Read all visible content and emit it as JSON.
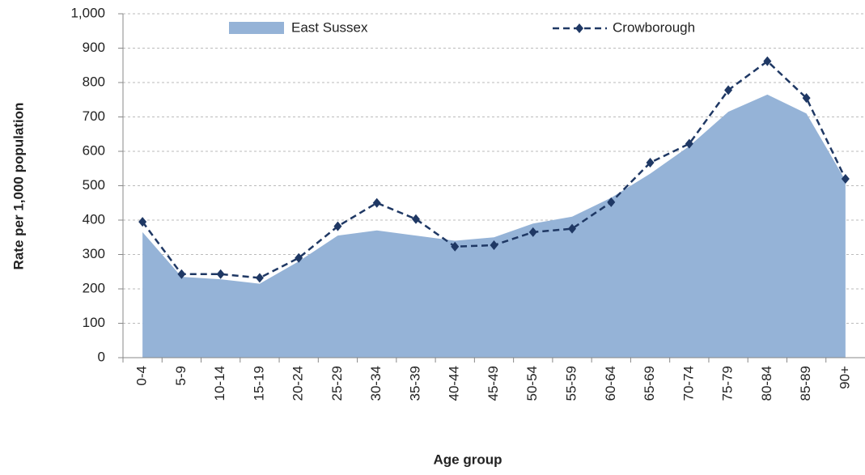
{
  "chart_data": {
    "type": "area",
    "y_label": "Rate per 1,000 population",
    "x_label": "Age group",
    "categories": [
      "0-4",
      "5-9",
      "10-14",
      "15-19",
      "20-24",
      "25-29",
      "30-34",
      "35-39",
      "40-44",
      "45-49",
      "50-54",
      "55-59",
      "60-64",
      "65-69",
      "70-74",
      "75-79",
      "80-84",
      "85-89",
      "90+"
    ],
    "series": [
      {
        "name": "East Sussex",
        "type": "area",
        "color": "#95b3d7",
        "values": [
          365,
          235,
          228,
          215,
          280,
          355,
          370,
          355,
          340,
          350,
          390,
          410,
          465,
          535,
          615,
          715,
          765,
          710,
          515
        ]
      },
      {
        "name": "Crowborough",
        "type": "line",
        "color": "#1f3864",
        "values": [
          395,
          243,
          243,
          232,
          290,
          382,
          450,
          403,
          323,
          327,
          365,
          375,
          452,
          567,
          622,
          778,
          862,
          755,
          520
        ]
      }
    ],
    "ylim": [
      0,
      1000
    ],
    "yticks": [
      0,
      100,
      200,
      300,
      400,
      500,
      600,
      700,
      800,
      900,
      {
        "value": 1000,
        "label": "1,000"
      }
    ],
    "grid": true
  }
}
